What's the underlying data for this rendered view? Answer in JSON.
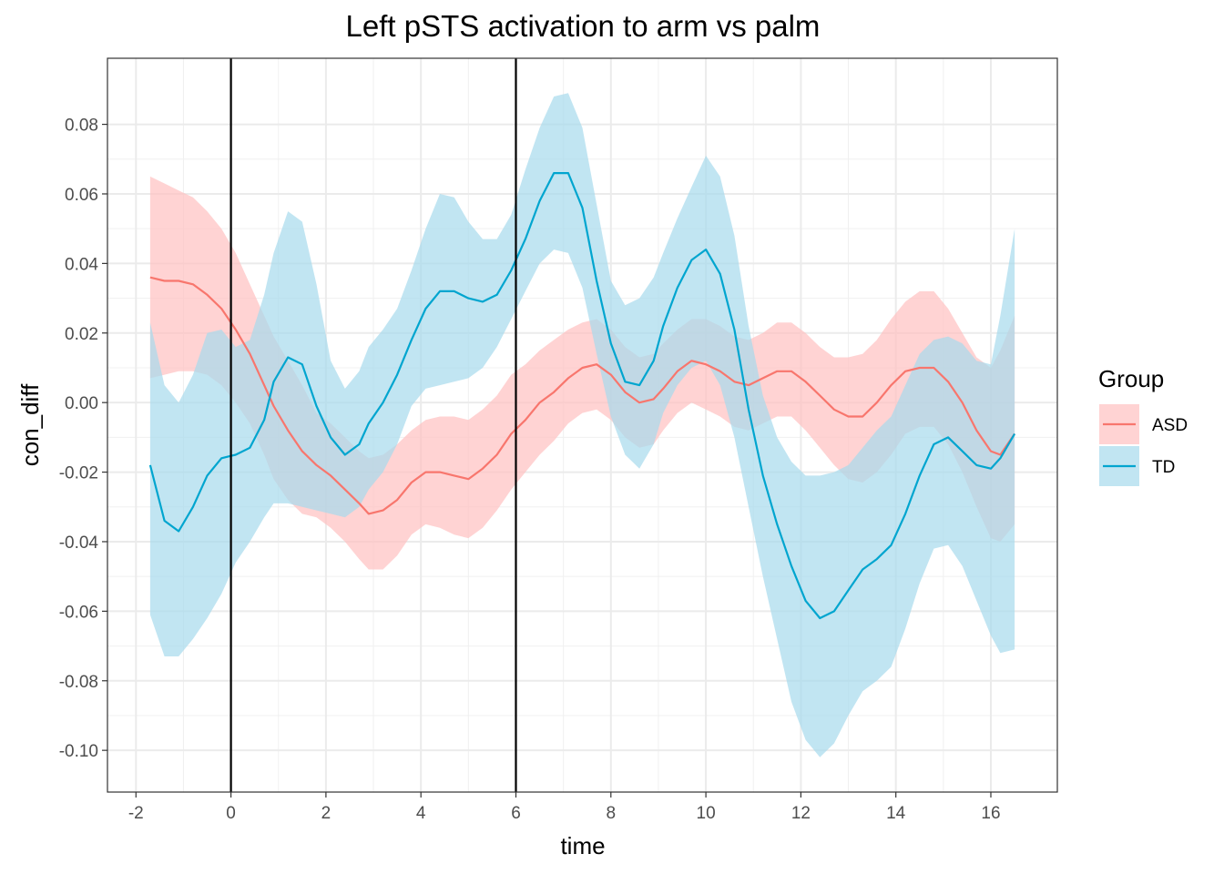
{
  "chart_data": {
    "type": "line",
    "title": "Left pSTS activation to arm vs palm",
    "xlabel": "time",
    "ylabel": "con_diff",
    "xlim": [
      -2.6,
      17.4
    ],
    "ylim": [
      -0.112,
      0.099
    ],
    "x_ticks": [
      -2,
      0,
      2,
      4,
      6,
      8,
      10,
      12,
      14,
      16
    ],
    "x_tick_labels": [
      "-2",
      "0",
      "2",
      "4",
      "6",
      "8",
      "10",
      "12",
      "14",
      "16"
    ],
    "y_ticks": [
      -0.1,
      -0.08,
      -0.06,
      -0.04,
      -0.02,
      0.0,
      0.02,
      0.04,
      0.06,
      0.08
    ],
    "y_tick_labels": [
      "-0.10",
      "-0.08",
      "-0.06",
      "-0.04",
      "-0.02",
      "0.00",
      "0.02",
      "0.04",
      "0.06",
      "0.08"
    ],
    "grid": true,
    "vlines": [
      0,
      6
    ],
    "legend": {
      "title": "Group",
      "placement": "right"
    },
    "x": [
      -1.7,
      -1.4,
      -1.1,
      -0.8,
      -0.5,
      -0.2,
      0.1,
      0.4,
      0.7,
      0.9,
      1.2,
      1.5,
      1.8,
      2.1,
      2.4,
      2.7,
      2.9,
      3.2,
      3.5,
      3.8,
      4.1,
      4.4,
      4.7,
      5.0,
      5.3,
      5.6,
      5.9,
      6.2,
      6.5,
      6.8,
      7.1,
      7.4,
      7.7,
      8.0,
      8.3,
      8.6,
      8.9,
      9.1,
      9.4,
      9.7,
      10.0,
      10.3,
      10.6,
      10.9,
      11.2,
      11.5,
      11.8,
      12.1,
      12.4,
      12.7,
      13.0,
      13.3,
      13.6,
      13.9,
      14.2,
      14.5,
      14.8,
      15.1,
      15.4,
      15.7,
      16.0,
      16.2,
      16.5
    ],
    "series": [
      {
        "name": "ASD",
        "color": "#F8766D",
        "fill": "#FFC0C0",
        "values": [
          0.036,
          0.035,
          0.035,
          0.034,
          0.031,
          0.027,
          0.021,
          0.014,
          0.005,
          -0.001,
          -0.008,
          -0.014,
          -0.018,
          -0.021,
          -0.025,
          -0.029,
          -0.032,
          -0.031,
          -0.028,
          -0.023,
          -0.02,
          -0.02,
          -0.021,
          -0.022,
          -0.019,
          -0.015,
          -0.009,
          -0.005,
          0.0,
          0.003,
          0.007,
          0.01,
          0.011,
          0.008,
          0.003,
          0.0,
          0.001,
          0.004,
          0.009,
          0.012,
          0.011,
          0.009,
          0.006,
          0.005,
          0.007,
          0.009,
          0.009,
          0.006,
          0.002,
          -0.002,
          -0.004,
          -0.004,
          0.0,
          0.005,
          0.009,
          0.01,
          0.01,
          0.006,
          0.0,
          -0.008,
          -0.014,
          -0.015,
          -0.009
        ],
        "lower": [
          0.007,
          0.008,
          0.009,
          0.009,
          0.008,
          0.005,
          0.0,
          -0.006,
          -0.015,
          -0.022,
          -0.028,
          -0.032,
          -0.033,
          -0.036,
          -0.04,
          -0.045,
          -0.048,
          -0.048,
          -0.044,
          -0.038,
          -0.035,
          -0.036,
          -0.038,
          -0.039,
          -0.036,
          -0.031,
          -0.025,
          -0.02,
          -0.015,
          -0.011,
          -0.006,
          -0.003,
          -0.002,
          -0.005,
          -0.01,
          -0.013,
          -0.012,
          -0.008,
          -0.003,
          0.0,
          -0.002,
          -0.004,
          -0.007,
          -0.008,
          -0.006,
          -0.004,
          -0.004,
          -0.008,
          -0.013,
          -0.018,
          -0.022,
          -0.023,
          -0.02,
          -0.015,
          -0.009,
          -0.007,
          -0.007,
          -0.012,
          -0.02,
          -0.03,
          -0.039,
          -0.04,
          -0.035
        ],
        "upper": [
          0.065,
          0.063,
          0.061,
          0.059,
          0.055,
          0.05,
          0.043,
          0.034,
          0.025,
          0.019,
          0.012,
          0.005,
          -0.003,
          -0.006,
          -0.01,
          -0.014,
          -0.016,
          -0.015,
          -0.012,
          -0.008,
          -0.005,
          -0.004,
          -0.004,
          -0.005,
          -0.002,
          0.002,
          0.008,
          0.011,
          0.015,
          0.018,
          0.021,
          0.023,
          0.024,
          0.021,
          0.016,
          0.013,
          0.014,
          0.017,
          0.021,
          0.024,
          0.024,
          0.022,
          0.019,
          0.018,
          0.02,
          0.023,
          0.023,
          0.02,
          0.016,
          0.013,
          0.013,
          0.014,
          0.018,
          0.024,
          0.029,
          0.032,
          0.032,
          0.027,
          0.02,
          0.013,
          0.01,
          0.015,
          0.025
        ]
      },
      {
        "name": "TD",
        "color": "#00A5CF",
        "fill": "#A6DAEC",
        "values": [
          -0.018,
          -0.034,
          -0.037,
          -0.03,
          -0.021,
          -0.016,
          -0.015,
          -0.013,
          -0.005,
          0.006,
          0.013,
          0.011,
          -0.001,
          -0.01,
          -0.015,
          -0.012,
          -0.006,
          0.0,
          0.008,
          0.018,
          0.027,
          0.032,
          0.032,
          0.03,
          0.029,
          0.031,
          0.038,
          0.047,
          0.058,
          0.066,
          0.066,
          0.056,
          0.035,
          0.017,
          0.006,
          0.005,
          0.012,
          0.022,
          0.033,
          0.041,
          0.044,
          0.037,
          0.021,
          -0.002,
          -0.021,
          -0.035,
          -0.047,
          -0.057,
          -0.062,
          -0.06,
          -0.054,
          -0.048,
          -0.045,
          -0.041,
          -0.032,
          -0.021,
          -0.012,
          -0.01,
          -0.014,
          -0.018,
          -0.019,
          -0.016,
          -0.009
        ],
        "lower": [
          -0.061,
          -0.073,
          -0.073,
          -0.068,
          -0.062,
          -0.055,
          -0.046,
          -0.04,
          -0.033,
          -0.029,
          -0.029,
          -0.03,
          -0.031,
          -0.032,
          -0.033,
          -0.03,
          -0.025,
          -0.02,
          -0.012,
          -0.001,
          0.004,
          0.005,
          0.006,
          0.007,
          0.01,
          0.016,
          0.024,
          0.032,
          0.04,
          0.044,
          0.043,
          0.033,
          0.014,
          -0.004,
          -0.015,
          -0.019,
          -0.012,
          -0.003,
          0.005,
          0.01,
          0.012,
          0.005,
          -0.01,
          -0.03,
          -0.05,
          -0.068,
          -0.086,
          -0.097,
          -0.102,
          -0.098,
          -0.09,
          -0.083,
          -0.08,
          -0.076,
          -0.065,
          -0.052,
          -0.042,
          -0.041,
          -0.047,
          -0.057,
          -0.067,
          -0.072,
          -0.071
        ],
        "upper": [
          0.023,
          0.005,
          0.0,
          0.008,
          0.02,
          0.021,
          0.016,
          0.018,
          0.031,
          0.043,
          0.055,
          0.052,
          0.034,
          0.012,
          0.004,
          0.009,
          0.016,
          0.021,
          0.027,
          0.038,
          0.05,
          0.06,
          0.059,
          0.052,
          0.047,
          0.047,
          0.054,
          0.067,
          0.079,
          0.088,
          0.089,
          0.079,
          0.057,
          0.035,
          0.028,
          0.03,
          0.036,
          0.043,
          0.053,
          0.062,
          0.071,
          0.065,
          0.048,
          0.022,
          0.002,
          -0.01,
          -0.017,
          -0.021,
          -0.021,
          -0.02,
          -0.018,
          -0.013,
          -0.008,
          -0.004,
          0.005,
          0.014,
          0.018,
          0.019,
          0.017,
          0.012,
          0.011,
          0.025,
          0.05
        ]
      }
    ]
  }
}
